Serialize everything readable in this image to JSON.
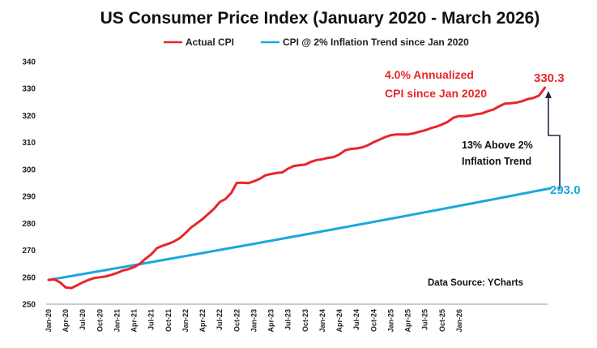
{
  "chart_data": {
    "type": "line",
    "title": "US Consumer Price Index (January 2020 -  March 2026)",
    "ylim": [
      250,
      340
    ],
    "yticks": [
      "340",
      "330",
      "320",
      "310",
      "300",
      "290",
      "280",
      "270",
      "260",
      "250"
    ],
    "xticks": [
      "Jan-20",
      "Apr-20",
      "Jul-20",
      "Oct-20",
      "Jan-21",
      "Apr-21",
      "Jul-21",
      "Oct-21",
      "Jan-22",
      "Apr-22",
      "Jul-22",
      "Oct-22",
      "Jan-23",
      "Apr-23",
      "Jul-23",
      "Oct-23",
      "Jan-24",
      "Apr-24",
      "Jul-24",
      "Oct-24",
      "Jan-25",
      "Apr-25",
      "Jul-25",
      "Oct-25",
      "Jan-26"
    ],
    "grid": false,
    "legend_position": "top-center",
    "colors": {
      "actual": "#e8262a",
      "trend": "#1aa8dc",
      "arrow": "#1f2a44"
    },
    "series": [
      {
        "name": "Actual CPI",
        "values": [
          259.0,
          259.2,
          258.1,
          256.2,
          256.0,
          257.0,
          258.1,
          259.0,
          259.7,
          260.0,
          260.3,
          260.9,
          261.6,
          262.5,
          263.0,
          263.8,
          265.0,
          266.9,
          268.5,
          270.8,
          271.7,
          272.4,
          273.3,
          274.5,
          276.4,
          278.5,
          280.0,
          281.6,
          283.5,
          285.4,
          287.9,
          289.0,
          291.2,
          295.0,
          295.1,
          294.9,
          295.6,
          296.5,
          297.8,
          298.3,
          298.7,
          298.9,
          300.3,
          301.3,
          301.6,
          301.8,
          302.8,
          303.5,
          303.8,
          304.3,
          304.6,
          305.6,
          307.1,
          307.6,
          307.8,
          308.2,
          309.0,
          310.1,
          311.0,
          312.0,
          312.7,
          313.0,
          313.0,
          313.0,
          313.4,
          314.0,
          314.5,
          315.3,
          315.9,
          316.7,
          317.7,
          319.2,
          319.8,
          319.8,
          320.0,
          320.5,
          320.8,
          321.6,
          322.2,
          323.4,
          324.4,
          324.6,
          324.8,
          325.3,
          326.1,
          326.5,
          327.4,
          330.3
        ]
      },
      {
        "name": "CPI @ 2% Inflation Trend since Jan 2020",
        "start": 259.0,
        "end": 293.0,
        "months": 88
      }
    ],
    "annotations": {
      "annualized_line1": "4.0% Annualized",
      "annualized_line2": "CPI since Jan 2020",
      "actual_end_label": "330.3",
      "trend_end_label": "293.0",
      "gap_line1": "13% Above 2%",
      "gap_line2": "Inflation Trend",
      "source": "Data Source: YCharts"
    }
  }
}
